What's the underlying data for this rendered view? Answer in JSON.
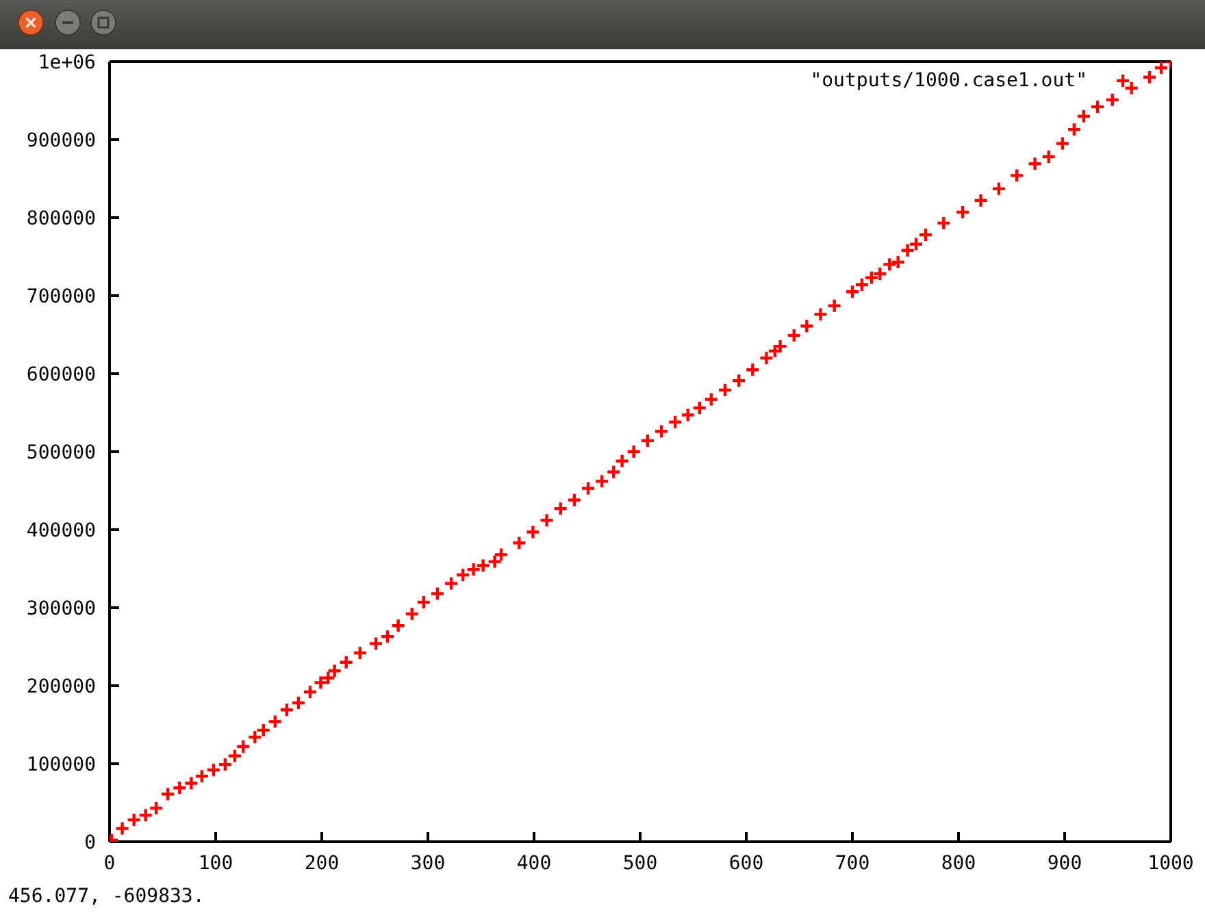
{
  "chart_data": {
    "type": "scatter",
    "x": [
      0,
      2,
      12,
      23,
      34,
      44,
      55,
      66,
      77,
      87,
      98,
      109,
      118,
      126,
      137,
      145,
      156,
      167,
      178,
      189,
      199,
      206,
      212,
      223,
      236,
      251,
      262,
      272,
      285,
      296,
      309,
      322,
      333,
      343,
      352,
      363,
      369,
      386,
      399,
      412,
      425,
      438,
      451,
      464,
      475,
      483,
      494,
      507,
      520,
      533,
      545,
      556,
      567,
      580,
      593,
      606,
      619,
      627,
      632,
      645,
      657,
      670,
      683,
      700,
      709,
      718,
      726,
      735,
      743,
      752,
      760,
      769,
      786,
      804,
      821,
      838,
      855,
      872,
      885,
      898,
      909,
      918,
      931,
      945,
      963,
      980,
      991,
      1000
    ],
    "series": [
      {
        "name": "\"outputs/1000.case1.out\"",
        "color": "#ff0000",
        "values": [
          0,
          2000,
          17000,
          28000,
          34000,
          43000,
          61000,
          69000,
          75000,
          84000,
          92000,
          99000,
          110000,
          122000,
          134000,
          143000,
          154000,
          169000,
          178000,
          192000,
          204000,
          210000,
          219000,
          230000,
          242000,
          254000,
          263000,
          277000,
          292000,
          307000,
          318000,
          331000,
          342000,
          349000,
          354000,
          359000,
          368000,
          383000,
          397000,
          412000,
          427000,
          438000,
          453000,
          462000,
          474000,
          488000,
          500000,
          514000,
          526000,
          538000,
          547000,
          556000,
          567000,
          579000,
          591000,
          605000,
          620000,
          629000,
          635000,
          649000,
          661000,
          676000,
          687000,
          705000,
          714000,
          723000,
          728000,
          740000,
          743000,
          758000,
          766000,
          778000,
          793000,
          807000,
          822000,
          837000,
          854000,
          869000,
          878000,
          895000,
          913000,
          930000,
          942000,
          951000,
          966000,
          980000,
          992000,
          1000000
        ]
      }
    ],
    "xlim": [
      0,
      1000
    ],
    "xticks": [
      0,
      100,
      200,
      300,
      400,
      500,
      600,
      700,
      800,
      900,
      1000
    ],
    "ylim": [
      0,
      1000000
    ],
    "yticks": [
      0,
      100000,
      200000,
      300000,
      400000,
      500000,
      600000,
      700000,
      800000,
      900000,
      {
        "value": 1000000,
        "label": "1e+06"
      }
    ],
    "marker": "cross",
    "legend": "top right",
    "annotations": [
      "456.077, -609833."
    ]
  }
}
